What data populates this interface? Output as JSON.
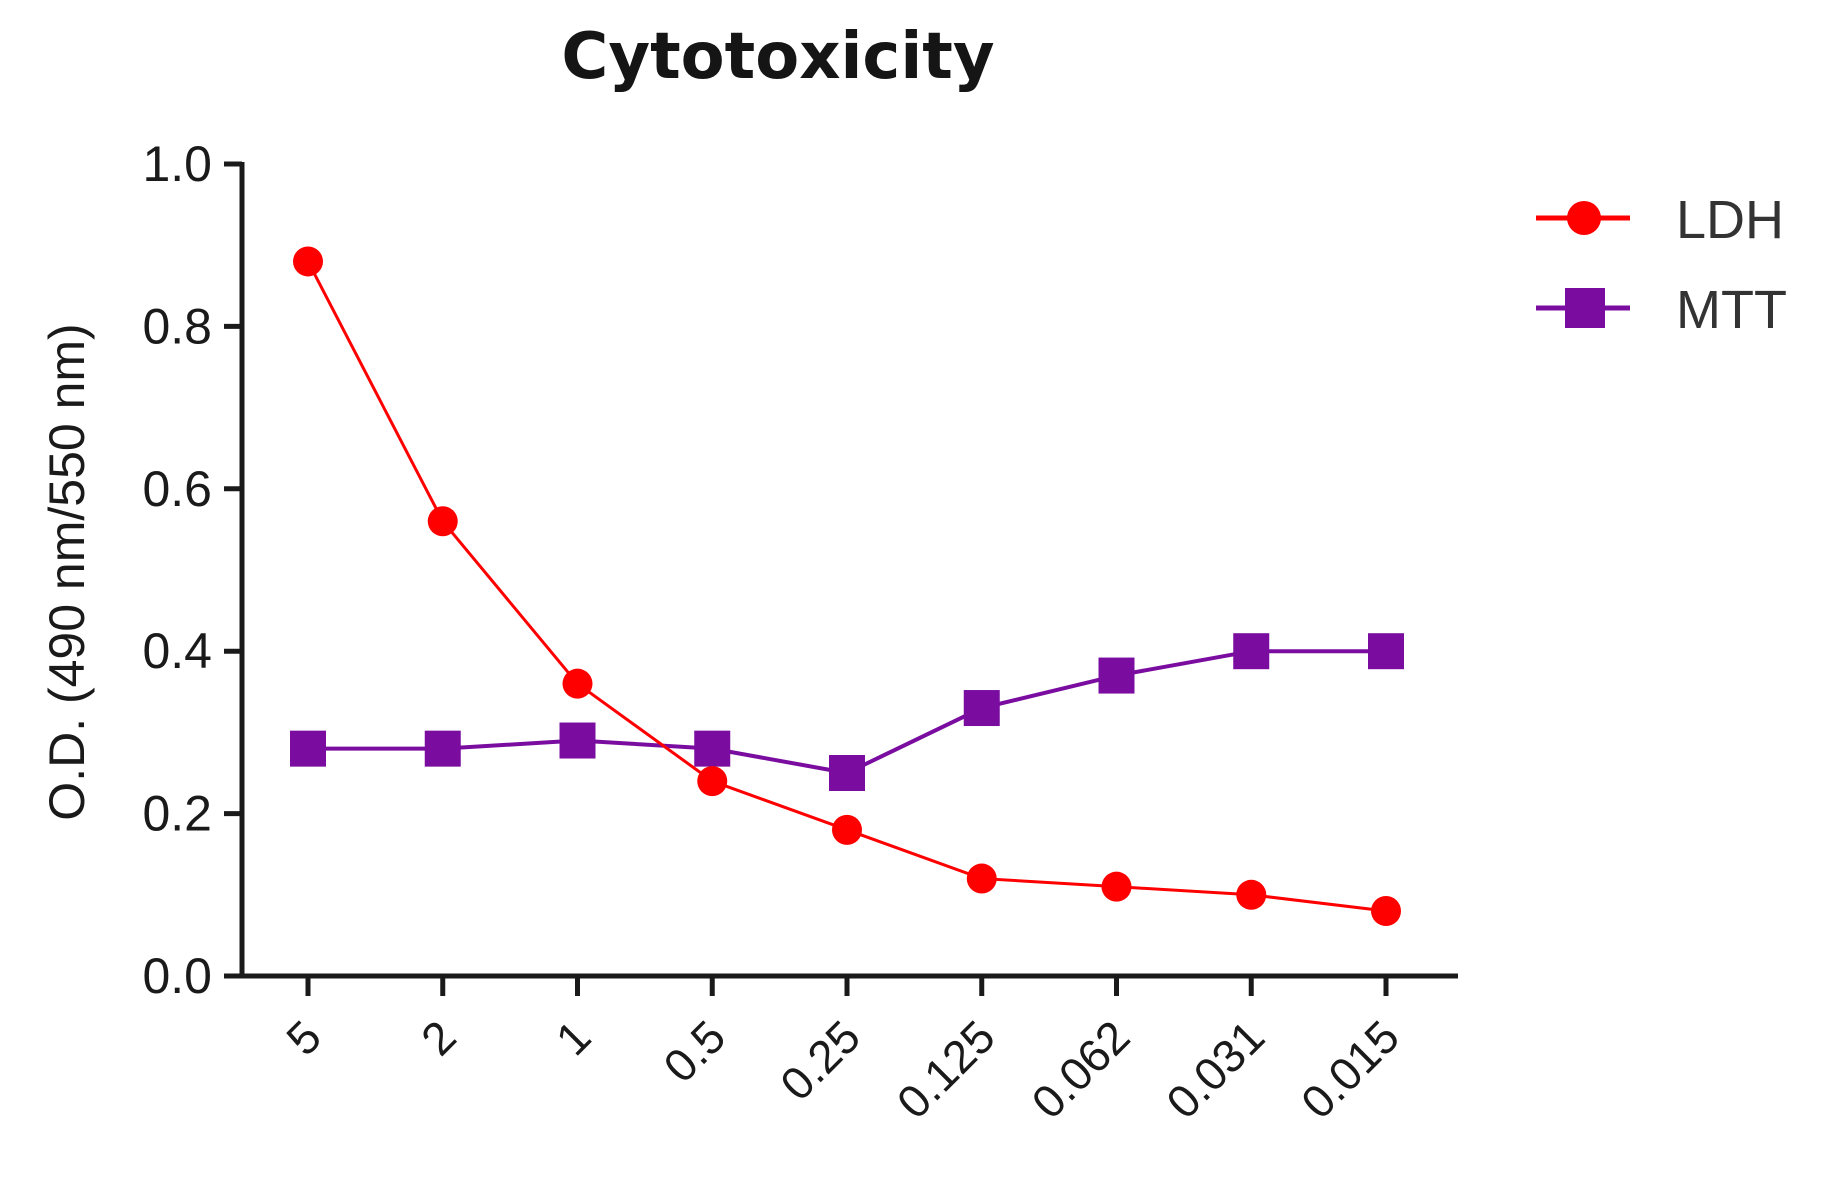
{
  "chart_data": {
    "type": "line",
    "title": "Cytotoxicity",
    "xlabel": "",
    "ylabel": "O.D. (490 nm/550 nm)",
    "categories": [
      "5",
      "2",
      "1",
      "0.5",
      "0.25",
      "0.125",
      "0.062",
      "0.031",
      "0.015"
    ],
    "ylim": [
      0,
      1.0
    ],
    "yticks": [
      "0.0",
      "0.2",
      "0.4",
      "0.6",
      "0.8",
      "1.0"
    ],
    "grid": false,
    "legend_position": "top-right",
    "series": [
      {
        "name": "LDH",
        "color": "#ff0000",
        "marker": "circle",
        "values": [
          0.88,
          0.56,
          0.36,
          0.24,
          0.18,
          0.12,
          0.11,
          0.1,
          0.08
        ]
      },
      {
        "name": "MTT",
        "color": "#7a0da0",
        "marker": "square",
        "values": [
          0.28,
          0.28,
          0.29,
          0.28,
          0.25,
          0.33,
          0.37,
          0.4,
          0.4
        ]
      }
    ]
  }
}
